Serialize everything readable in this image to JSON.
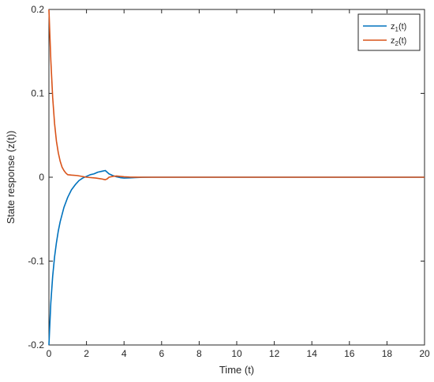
{
  "chart_data": {
    "type": "line",
    "title": "",
    "xlabel": "Time (t)",
    "ylabel": "State response (z(t))",
    "xlim": [
      0,
      20
    ],
    "ylim": [
      -0.2,
      0.2
    ],
    "xticks": [
      0,
      2,
      4,
      6,
      8,
      10,
      12,
      14,
      16,
      18,
      20
    ],
    "xtick_labels": [
      "0",
      "2",
      "4",
      "6",
      "8",
      "10",
      "12",
      "14",
      "16",
      "18",
      "20"
    ],
    "yticks": [
      -0.2,
      -0.1,
      0,
      0.1,
      0.2
    ],
    "ytick_labels": [
      "-0.2",
      "-0.1",
      "0",
      "0.1",
      "0.2"
    ],
    "grid": false,
    "legend_position": "top-right",
    "series": [
      {
        "name": "z1(t)",
        "label_base": "z",
        "label_sub": "1",
        "label_tail": "(t)",
        "color": "#0072BD",
        "x": [
          0,
          0.1,
          0.2,
          0.3,
          0.4,
          0.5,
          0.6,
          0.8,
          1.0,
          1.2,
          1.4,
          1.6,
          1.8,
          2.0,
          2.2,
          2.4,
          2.6,
          2.8,
          3.0,
          3.1,
          3.2,
          3.4,
          3.6,
          3.8,
          4.0,
          4.3,
          4.6,
          5.0,
          5.5,
          6.0,
          8.0,
          10.0,
          12.0,
          14.0,
          16.0,
          18.0,
          20.0
        ],
        "y": [
          -0.2,
          -0.15,
          -0.118,
          -0.095,
          -0.078,
          -0.064,
          -0.053,
          -0.036,
          -0.024,
          -0.015,
          -0.009,
          -0.004,
          -0.001,
          0.001,
          0.003,
          0.004,
          0.006,
          0.007,
          0.008,
          0.006,
          0.004,
          0.002,
          0.0005,
          -0.0005,
          -0.001,
          -0.0008,
          -0.0004,
          -0.0001,
          0,
          0,
          0,
          0,
          0,
          0,
          0,
          0,
          0
        ]
      },
      {
        "name": "z2(t)",
        "label_base": "z",
        "label_sub": "2",
        "label_tail": "(t)",
        "color": "#D95319",
        "x": [
          0,
          0.05,
          0.1,
          0.2,
          0.3,
          0.4,
          0.5,
          0.6,
          0.7,
          0.8,
          0.9,
          1.0,
          1.2,
          1.5,
          2.0,
          2.5,
          2.8,
          3.0,
          3.1,
          3.2,
          3.4,
          3.6,
          3.8,
          4.0,
          4.3,
          4.6,
          5.0,
          6.0,
          8.0,
          10.0,
          12.0,
          14.0,
          16.0,
          18.0,
          20.0
        ],
        "y": [
          0.2,
          0.17,
          0.14,
          0.095,
          0.064,
          0.043,
          0.029,
          0.019,
          0.012,
          0.008,
          0.005,
          0.003,
          0.0025,
          0.002,
          0.0,
          -0.001,
          -0.002,
          -0.003,
          -0.002,
          0.0,
          0.001,
          0.0015,
          0.001,
          0.0005,
          0.0002,
          0.0001,
          0,
          0,
          0,
          0,
          0,
          0,
          0,
          0,
          0
        ]
      }
    ]
  }
}
